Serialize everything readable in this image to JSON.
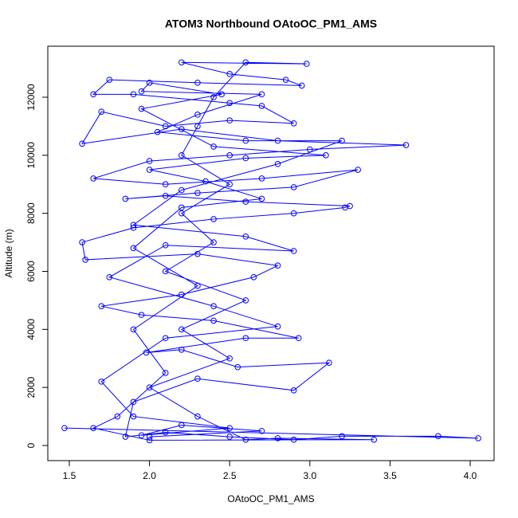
{
  "chart_data": {
    "type": "line",
    "title": "ATOM3 Northbound OAtoOC_PM1_AMS",
    "xlabel": "OAtoOC_PM1_AMS",
    "ylabel": "Altitude (m)",
    "markers": true,
    "grid": false,
    "xlim": [
      1.366,
      4.149
    ],
    "ylim": [
      -522,
      13757
    ],
    "xticks": [
      1.5,
      {
        "value": 2,
        "label": "2.0"
      },
      2.5,
      {
        "value": 3,
        "label": "3.0"
      },
      3.5,
      {
        "value": 4,
        "label": "4.0"
      }
    ],
    "yticks": [
      0,
      2000,
      4000,
      6000,
      8000,
      10000,
      12000
    ],
    "series": [
      {
        "color": "#0000ff",
        "x": [
          1.47,
          4.05,
          3.8,
          3.2,
          2.9,
          2.5,
          2.1,
          1.85,
          1.9,
          2.3,
          2.9,
          3.12,
          2.55,
          2.2,
          1.98,
          2.6,
          2.93,
          2.4,
          1.95,
          1.7,
          2.2,
          2.65,
          2.8,
          2.3,
          1.6,
          1.58,
          1.9,
          2.4,
          2.9,
          3.22,
          3.25,
          2.6,
          2.1,
          1.85,
          2.3,
          2.9,
          3.3,
          2.7,
          2.1,
          1.65,
          2.0,
          2.5,
          3.0,
          3.6,
          2.8,
          2.2,
          1.58,
          1.7,
          2.1,
          2.5,
          2.9,
          2.7,
          2.5,
          1.9,
          1.65,
          1.75,
          2.3,
          2.95,
          2.85,
          2.5,
          2.2,
          2.98,
          2.6,
          2.4,
          2.3,
          2.2,
          2.5,
          2.2,
          2.4,
          2.1,
          2.6,
          2.2,
          2.5,
          2.0,
          2.3,
          2.6,
          2.8,
          3.4,
          2.0,
          1.65,
          1.8,
          2.1,
          1.9,
          2.3,
          1.9,
          2.2,
          2.7,
          2.35,
          2.0,
          2.6,
          3.1,
          2.4,
          1.95,
          2.45,
          2.0,
          1.95,
          2.7,
          2.3,
          2.05,
          2.6,
          3.2,
          2.8,
          2.2,
          1.9,
          2.6,
          2.9,
          2.1,
          1.75,
          2.4,
          2.8,
          2.1,
          1.7,
          1.9,
          2.5,
          1.95,
          2.2,
          2.7,
          2.0
        ],
        "values": [
          600,
          250,
          320,
          320,
          200,
          300,
          450,
          300,
          1500,
          2300,
          1900,
          2850,
          2700,
          3300,
          3200,
          3700,
          3700,
          4300,
          4500,
          4800,
          5200,
          5800,
          6200,
          6600,
          6400,
          7000,
          7500,
          7800,
          8000,
          8200,
          8250,
          8400,
          8600,
          8500,
          8700,
          8900,
          9500,
          9200,
          9000,
          9200,
          9800,
          10000,
          10200,
          10350,
          10500,
          10900,
          10400,
          11500,
          11000,
          11200,
          11100,
          11700,
          11800,
          12100,
          12100,
          12600,
          12500,
          12400,
          12600,
          12800,
          13200,
          13150,
          13200,
          12000,
          11000,
          10000,
          9000,
          8000,
          7000,
          6000,
          5000,
          4000,
          3000,
          2000,
          1000,
          200,
          250,
          200,
          180,
          600,
          1000,
          2500,
          4000,
          5500,
          6800,
          8200,
          8500,
          9100,
          9500,
          9900,
          10000,
          10300,
          11600,
          12100,
          12500,
          12200,
          12100,
          11400,
          10800,
          10500,
          10500,
          9700,
          8800,
          7600,
          7200,
          6700,
          6900,
          5800,
          4800,
          4100,
          3700,
          2200,
          1000,
          600,
          350,
          700,
          500,
          300
        ]
      }
    ]
  }
}
